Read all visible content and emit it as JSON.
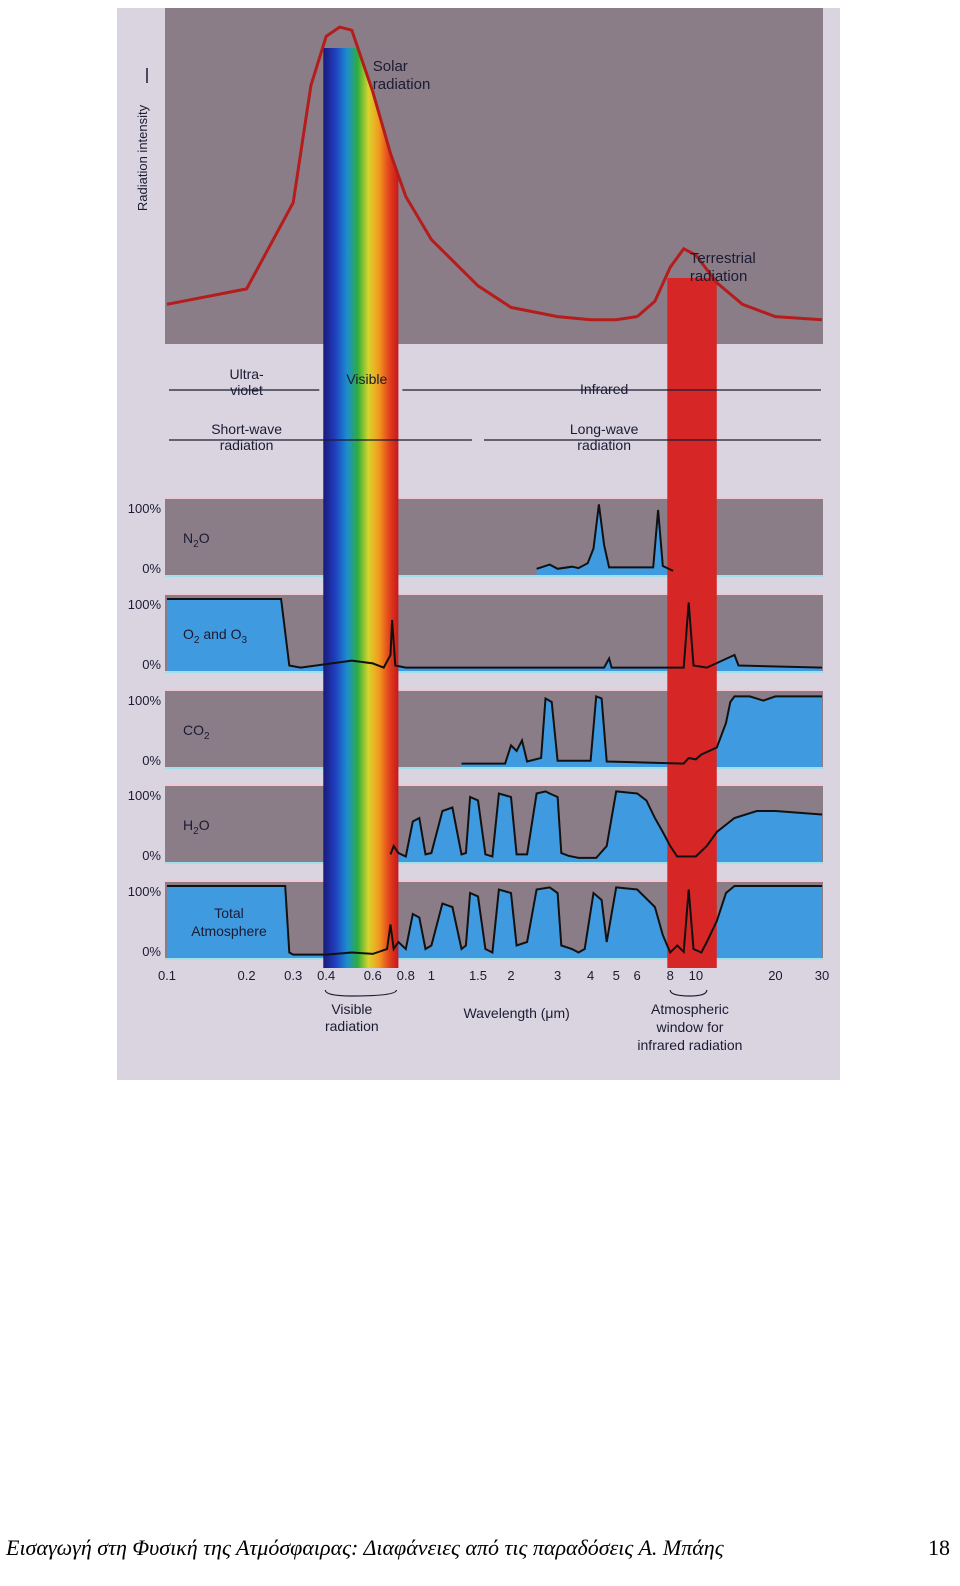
{
  "chart_data": {
    "type": "line",
    "x_axis": {
      "label": "Wavelength (μm)",
      "scale": "log",
      "range": [
        0.1,
        30
      ],
      "ticks": [
        "0.1",
        "0.2",
        "0.3",
        "0.4",
        "0.6",
        "0.8",
        "1",
        "1.5",
        "2",
        "3",
        "4",
        "5",
        "6",
        "8",
        "10",
        "20",
        "30"
      ]
    },
    "intensity_panel": {
      "ylabel": "Radiation intensity",
      "series": [
        {
          "name": "Solar radiation",
          "label_lines": [
            "Solar",
            "radiation"
          ],
          "points": [
            [
              0.1,
              0.09
            ],
            [
              0.2,
              0.14
            ],
            [
              0.3,
              0.42
            ],
            [
              0.35,
              0.8
            ],
            [
              0.4,
              0.96
            ],
            [
              0.45,
              0.99
            ],
            [
              0.5,
              0.98
            ],
            [
              0.6,
              0.78
            ],
            [
              0.7,
              0.58
            ],
            [
              0.8,
              0.44
            ],
            [
              1.0,
              0.3
            ],
            [
              1.5,
              0.15
            ],
            [
              2,
              0.08
            ],
            [
              3,
              0.05
            ],
            [
              4,
              0.04
            ],
            [
              5,
              0.04
            ],
            [
              6,
              0.05
            ]
          ]
        },
        {
          "name": "Terrestrial radiation",
          "label_lines": [
            "Terrestrial",
            "radiation"
          ],
          "points": [
            [
              6,
              0.05
            ],
            [
              7,
              0.1
            ],
            [
              8,
              0.21
            ],
            [
              9,
              0.27
            ],
            [
              10,
              0.25
            ],
            [
              12,
              0.16
            ],
            [
              15,
              0.09
            ],
            [
              20,
              0.05
            ],
            [
              30,
              0.04
            ]
          ]
        }
      ]
    },
    "regions": {
      "ultraviolet": "Ultra-violet",
      "ultraviolet_lines": [
        "Ultra-",
        "violet"
      ],
      "visible": "Visible",
      "infrared": "Infrared",
      "shortwave_lines": [
        "Short-wave",
        "radiation"
      ],
      "longwave_lines": [
        "Long-wave",
        "radiation"
      ]
    },
    "absorption_panels": {
      "y_ticks": [
        "100%",
        "0%"
      ],
      "panels": [
        {
          "name": "N₂O",
          "base": "N",
          "sub": "2",
          "tail": "O",
          "points": [
            [
              2.5,
              0.06
            ],
            [
              2.8,
              0.12
            ],
            [
              3,
              0.06
            ],
            [
              3.4,
              0.09
            ],
            [
              3.6,
              0.07
            ],
            [
              3.9,
              0.14
            ],
            [
              4.1,
              0.35
            ],
            [
              4.3,
              0.98
            ],
            [
              4.5,
              0.4
            ],
            [
              4.7,
              0.08
            ],
            [
              6.9,
              0.08
            ],
            [
              7.2,
              0.9
            ],
            [
              7.5,
              0.1
            ],
            [
              8.2,
              0.03
            ]
          ]
        },
        {
          "name": "O₂ and O₃",
          "base": "O",
          "sub": "2",
          "tail": " and O",
          "sub2": "3",
          "points": [
            [
              0.1,
              1
            ],
            [
              0.2,
              1
            ],
            [
              0.24,
              1
            ],
            [
              0.27,
              1
            ],
            [
              0.29,
              0.05
            ],
            [
              0.32,
              0.02
            ],
            [
              0.5,
              0.12
            ],
            [
              0.6,
              0.08
            ],
            [
              0.66,
              0.02
            ],
            [
              0.7,
              0.2
            ],
            [
              0.71,
              0.7
            ],
            [
              0.73,
              0.05
            ],
            [
              0.8,
              0.02
            ],
            [
              4.5,
              0.02
            ],
            [
              4.7,
              0.15
            ],
            [
              4.8,
              0.02
            ],
            [
              9,
              0.02
            ],
            [
              9.4,
              0.95
            ],
            [
              9.8,
              0.05
            ],
            [
              11,
              0.02
            ],
            [
              14,
              0.2
            ],
            [
              14.5,
              0.05
            ],
            [
              30,
              0.02
            ]
          ]
        },
        {
          "name": "CO₂",
          "base": "CO",
          "sub": "2",
          "tail": "",
          "points": [
            [
              1.3,
              0.02
            ],
            [
              1.9,
              0.02
            ],
            [
              2.0,
              0.28
            ],
            [
              2.1,
              0.2
            ],
            [
              2.2,
              0.35
            ],
            [
              2.3,
              0.05
            ],
            [
              2.6,
              0.1
            ],
            [
              2.7,
              0.95
            ],
            [
              2.85,
              0.9
            ],
            [
              3.0,
              0.06
            ],
            [
              4.0,
              0.06
            ],
            [
              4.2,
              0.98
            ],
            [
              4.4,
              0.95
            ],
            [
              4.6,
              0.05
            ],
            [
              9,
              0.02
            ],
            [
              9.4,
              0.1
            ],
            [
              10,
              0.08
            ],
            [
              10.5,
              0.15
            ],
            [
              12,
              0.25
            ],
            [
              13,
              0.6
            ],
            [
              13.5,
              0.9
            ],
            [
              14,
              0.98
            ],
            [
              16,
              0.98
            ],
            [
              18,
              0.92
            ],
            [
              20,
              0.98
            ],
            [
              30,
              0.98
            ]
          ]
        },
        {
          "name": "H₂O",
          "base": "H",
          "sub": "2",
          "tail": "O",
          "points": [
            [
              0.7,
              0.08
            ],
            [
              0.72,
              0.2
            ],
            [
              0.75,
              0.1
            ],
            [
              0.8,
              0.05
            ],
            [
              0.85,
              0.55
            ],
            [
              0.9,
              0.6
            ],
            [
              0.95,
              0.08
            ],
            [
              1.0,
              0.1
            ],
            [
              1.1,
              0.7
            ],
            [
              1.2,
              0.75
            ],
            [
              1.3,
              0.08
            ],
            [
              1.35,
              0.1
            ],
            [
              1.4,
              0.9
            ],
            [
              1.5,
              0.85
            ],
            [
              1.6,
              0.08
            ],
            [
              1.7,
              0.05
            ],
            [
              1.8,
              0.95
            ],
            [
              2.0,
              0.9
            ],
            [
              2.1,
              0.08
            ],
            [
              2.3,
              0.08
            ],
            [
              2.5,
              0.95
            ],
            [
              2.7,
              0.98
            ],
            [
              2.8,
              0.95
            ],
            [
              3.0,
              0.9
            ],
            [
              3.1,
              0.1
            ],
            [
              3.3,
              0.06
            ],
            [
              3.6,
              0.03
            ],
            [
              4.2,
              0.03
            ],
            [
              4.6,
              0.2
            ],
            [
              5,
              0.98
            ],
            [
              6,
              0.95
            ],
            [
              6.5,
              0.85
            ],
            [
              7,
              0.6
            ],
            [
              7.5,
              0.4
            ],
            [
              8,
              0.2
            ],
            [
              8.5,
              0.05
            ],
            [
              10,
              0.05
            ],
            [
              11,
              0.2
            ],
            [
              12,
              0.4
            ],
            [
              14,
              0.6
            ],
            [
              17,
              0.7
            ],
            [
              20,
              0.7
            ],
            [
              30,
              0.65
            ]
          ]
        },
        {
          "name": "Total Atmosphere",
          "label_lines": [
            "Total",
            "Atmosphere"
          ],
          "points": [
            [
              0.1,
              1
            ],
            [
              0.2,
              1
            ],
            [
              0.28,
              1
            ],
            [
              0.29,
              0.05
            ],
            [
              0.3,
              0.02
            ],
            [
              0.4,
              0.02
            ],
            [
              0.5,
              0.05
            ],
            [
              0.6,
              0.03
            ],
            [
              0.68,
              0.1
            ],
            [
              0.7,
              0.45
            ],
            [
              0.72,
              0.1
            ],
            [
              0.75,
              0.2
            ],
            [
              0.8,
              0.1
            ],
            [
              0.85,
              0.6
            ],
            [
              0.9,
              0.55
            ],
            [
              0.95,
              0.1
            ],
            [
              1.0,
              0.15
            ],
            [
              1.1,
              0.75
            ],
            [
              1.2,
              0.7
            ],
            [
              1.3,
              0.1
            ],
            [
              1.35,
              0.15
            ],
            [
              1.4,
              0.9
            ],
            [
              1.5,
              0.85
            ],
            [
              1.6,
              0.1
            ],
            [
              1.7,
              0.05
            ],
            [
              1.8,
              0.95
            ],
            [
              2.0,
              0.9
            ],
            [
              2.1,
              0.15
            ],
            [
              2.3,
              0.2
            ],
            [
              2.5,
              0.95
            ],
            [
              2.8,
              0.98
            ],
            [
              3.0,
              0.9
            ],
            [
              3.1,
              0.15
            ],
            [
              3.4,
              0.1
            ],
            [
              3.6,
              0.05
            ],
            [
              3.8,
              0.1
            ],
            [
              4.1,
              0.9
            ],
            [
              4.4,
              0.8
            ],
            [
              4.6,
              0.2
            ],
            [
              5,
              0.98
            ],
            [
              6,
              0.95
            ],
            [
              7,
              0.7
            ],
            [
              7.5,
              0.3
            ],
            [
              8,
              0.05
            ],
            [
              8.5,
              0.15
            ],
            [
              9,
              0.06
            ],
            [
              9.4,
              0.95
            ],
            [
              9.8,
              0.1
            ],
            [
              10.5,
              0.05
            ],
            [
              11,
              0.2
            ],
            [
              12,
              0.5
            ],
            [
              13,
              0.9
            ],
            [
              14,
              1
            ],
            [
              30,
              1
            ]
          ]
        }
      ]
    },
    "annotations": {
      "visible_radiation_lines": [
        "Visible",
        "radiation"
      ],
      "atmospheric_window_lines": [
        "Atmospheric",
        "window for",
        "infrared radiation"
      ]
    },
    "colors": {
      "background": "#8a7d87",
      "blue_fill": "#3f9ae0",
      "red_curve": "#b51c1c",
      "red_band": "#d62626",
      "black_curve": "#111111",
      "page_border": "#d9d4df"
    }
  },
  "footer": {
    "text": "Εισαγωγή στη Φυσική της Ατμόσφαιρας: Διαφάνειες από τις παραδόσεις Α. Μπάης",
    "page": "18"
  }
}
